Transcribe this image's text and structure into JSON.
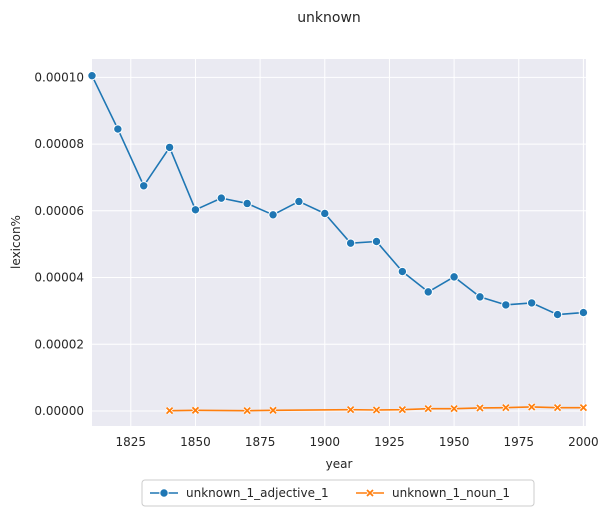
{
  "chart_data": {
    "type": "line",
    "title": "unknown",
    "xlabel": "year",
    "ylabel": "lexicon%",
    "xlim": [
      1810,
      2001
    ],
    "ylim": [
      -4.5e-06,
      0.0001055
    ],
    "x_ticks": [
      1825,
      1850,
      1875,
      1900,
      1925,
      1950,
      1975,
      2000
    ],
    "x_tick_labels": [
      "1825",
      "1850",
      "1875",
      "1900",
      "1925",
      "1950",
      "1975",
      "2000"
    ],
    "y_ticks": [
      0,
      2e-05,
      4e-05,
      6e-05,
      8e-05,
      0.0001
    ],
    "y_tick_labels": [
      "0.00000",
      "0.00002",
      "0.00004",
      "0.00006",
      "0.00008",
      "0.00010"
    ],
    "grid": true,
    "legend_position": "bottom-center",
    "series": [
      {
        "name": "unknown_1_adjective_1",
        "color": "#1f77b4",
        "marker": "circle",
        "x": [
          1810,
          1820,
          1830,
          1840,
          1850,
          1860,
          1870,
          1880,
          1890,
          1900,
          1910,
          1920,
          1930,
          1940,
          1950,
          1960,
          1970,
          1980,
          1990,
          2000
        ],
        "y": [
          0.0001005,
          8.45e-05,
          6.75e-05,
          7.9e-05,
          6.03e-05,
          6.38e-05,
          6.22e-05,
          5.88e-05,
          6.28e-05,
          5.92e-05,
          5.03e-05,
          5.08e-05,
          4.18e-05,
          3.57e-05,
          4.02e-05,
          3.42e-05,
          3.18e-05,
          3.24e-05,
          2.89e-05,
          2.95e-05
        ]
      },
      {
        "name": "unknown_1_noun_1",
        "color": "#ff7f0e",
        "marker": "x",
        "x": [
          1840,
          1850,
          1870,
          1880,
          1910,
          1920,
          1930,
          1940,
          1950,
          1960,
          1970,
          1980,
          1990,
          2000
        ],
        "y": [
          1e-07,
          2e-07,
          1e-07,
          2e-07,
          4e-07,
          3e-07,
          4e-07,
          7e-07,
          7e-07,
          9e-07,
          1e-06,
          1.2e-06,
          1e-06,
          1e-06
        ]
      }
    ]
  }
}
